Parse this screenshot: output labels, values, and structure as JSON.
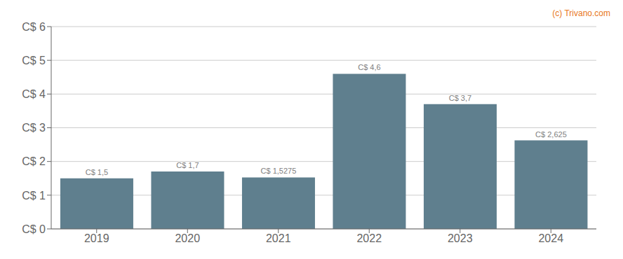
{
  "chart_data": {
    "type": "bar",
    "categories": [
      "2019",
      "2020",
      "2021",
      "2022",
      "2023",
      "2024"
    ],
    "values": [
      1.5,
      1.7,
      1.5275,
      4.6,
      3.7,
      2.625
    ],
    "value_labels": [
      "C$ 1,5",
      "C$ 1,7",
      "C$ 1,5275",
      "C$ 4,6",
      "C$ 3,7",
      "C$ 2,625"
    ],
    "data_labels": true,
    "color": "#5f7f8e",
    "ylim": [
      0,
      6
    ],
    "yticks": [
      {
        "value": 0,
        "label": "C$ 0"
      },
      {
        "value": 1,
        "label": "C$ 1"
      },
      {
        "value": 2,
        "label": "C$ 2"
      },
      {
        "value": 3,
        "label": "C$ 3"
      },
      {
        "value": 4,
        "label": "C$ 4"
      },
      {
        "value": 5,
        "label": "C$ 5"
      },
      {
        "value": 6,
        "label": "C$ 6"
      }
    ],
    "grid": true,
    "annotations": [
      {
        "text": "(c) Trivano.com",
        "color": "#e87722"
      }
    ]
  }
}
